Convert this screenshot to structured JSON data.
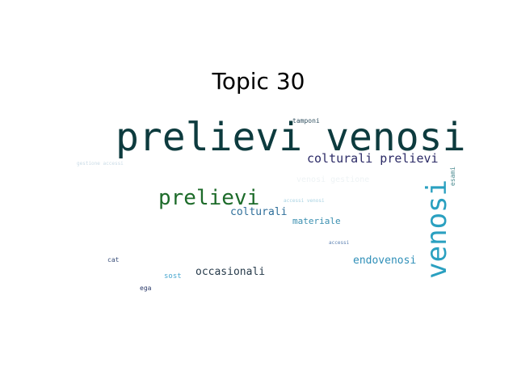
{
  "title": "Topic 30",
  "words": [
    {
      "text": "prelievi venosi",
      "color": "#0d3b3e"
    },
    {
      "text": "tamponi",
      "color": "#2f4f5f"
    },
    {
      "text": "colturali prelievi",
      "color": "#2b2a66"
    },
    {
      "text": "gestione accessi",
      "color": "#c9dbe6"
    },
    {
      "text": "venosi gestione",
      "color": "#eef3f5"
    },
    {
      "text": "esami",
      "color": "#4a8a8f"
    },
    {
      "text": "prelievi",
      "color": "#1d6b2a"
    },
    {
      "text": "accessi venosi",
      "color": "#a8d2e2"
    },
    {
      "text": "colturali",
      "color": "#2f6f9a"
    },
    {
      "text": "materiale",
      "color": "#3a8fb0"
    },
    {
      "text": "venosi",
      "color": "#2aa0c0"
    },
    {
      "text": "accessi",
      "color": "#5a7fb0"
    },
    {
      "text": "cat",
      "color": "#3a4f7a"
    },
    {
      "text": "endovenosi",
      "color": "#2f8fb8"
    },
    {
      "text": "sost",
      "color": "#4aa8d0"
    },
    {
      "text": "occasionali",
      "color": "#263a4a"
    },
    {
      "text": "ega",
      "color": "#2b3a6a"
    }
  ]
}
